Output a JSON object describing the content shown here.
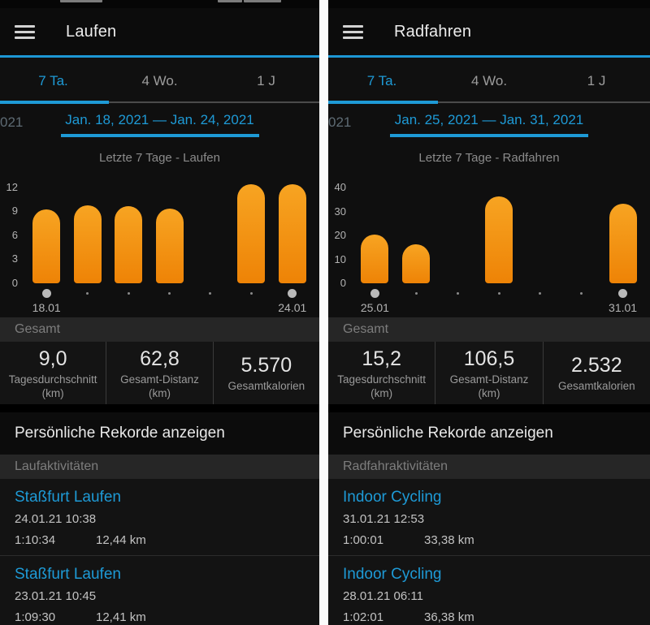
{
  "colors": {
    "accent_blue": "#1e9ad6",
    "bar_top": "#f7a422",
    "bar_bottom": "#ee8306",
    "section_header_bg": "#262626",
    "divider_white": "#fbfbfb"
  },
  "tabs": [
    {
      "label": "7 Ta."
    },
    {
      "label": "4 Wo."
    },
    {
      "label": "1 J"
    }
  ],
  "shared": {
    "totals_header": "Gesamt",
    "records_link": "Persönliche Rekorde anzeigen"
  },
  "panels": [
    {
      "title": "Laufen",
      "prev_date_partial": "021",
      "date_range": "Jan. 18, 2021 — Jan. 24, 2021",
      "chart_title": "Letzte 7 Tage - Laufen",
      "stats": [
        {
          "value": "9,0",
          "label": "Tagesdurchschnitt",
          "unit": "(km)"
        },
        {
          "value": "62,8",
          "label": "Gesamt-Distanz",
          "unit": "(km)"
        },
        {
          "value": "5.570",
          "label": "Gesamtkalorien",
          "unit": ""
        }
      ],
      "activities_header": "Laufaktivitäten",
      "activities": [
        {
          "name": "Staßfurt Laufen",
          "datetime": "24.01.21 10:38",
          "duration": "1:10:34",
          "distance": "12,44 km"
        },
        {
          "name": "Staßfurt Laufen",
          "datetime": "23.01.21 10:45",
          "duration": "1:09:30",
          "distance": "12,41 km"
        }
      ]
    },
    {
      "title": "Radfahren",
      "prev_date_partial": "021",
      "date_range": "Jan. 25, 2021 — Jan. 31, 2021",
      "chart_title": "Letzte 7 Tage - Radfahren",
      "stats": [
        {
          "value": "15,2",
          "label": "Tagesdurchschnitt",
          "unit": "(km)"
        },
        {
          "value": "106,5",
          "label": "Gesamt-Distanz",
          "unit": "(km)"
        },
        {
          "value": "2.532",
          "label": "Gesamtkalorien",
          "unit": ""
        }
      ],
      "activities_header": "Radfahraktivitäten",
      "activities": [
        {
          "name": "Indoor Cycling",
          "datetime": "31.01.21 12:53",
          "duration": "1:00:01",
          "distance": "33,38 km"
        },
        {
          "name": "Indoor Cycling",
          "datetime": "28.01.21 06:11",
          "duration": "1:02:01",
          "distance": "36,38 km"
        }
      ]
    }
  ],
  "chart_data": [
    {
      "type": "bar",
      "title": "Letzte 7 Tage - Laufen",
      "unit": "km",
      "x": [
        "18.01",
        "",
        "",
        "",
        "",
        "",
        "24.01"
      ],
      "values": [
        9.2,
        9.8,
        9.7,
        9.3,
        0,
        12.41,
        12.44
      ],
      "yticks": [
        0,
        3,
        6,
        9,
        12
      ],
      "ylim": [
        0,
        13
      ],
      "grid": false,
      "legend": false
    },
    {
      "type": "bar",
      "title": "Letzte 7 Tage - Radfahren",
      "unit": "km",
      "x": [
        "25.01",
        "",
        "",
        "",
        "",
        "",
        "31.01"
      ],
      "values": [
        20.5,
        16.2,
        0,
        36.38,
        0,
        0,
        33.38
      ],
      "yticks": [
        0,
        10,
        20,
        30,
        40
      ],
      "ylim": [
        0,
        43.5
      ],
      "grid": false,
      "legend": false
    }
  ]
}
